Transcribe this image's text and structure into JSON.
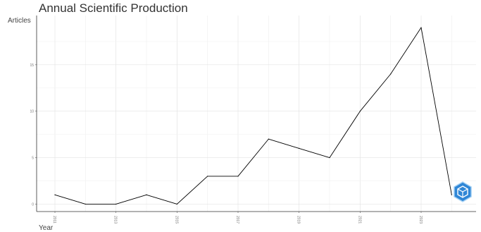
{
  "chart_data": {
    "type": "line",
    "title": "Annual Scientific Production",
    "xlabel": "Year",
    "ylabel": "Articles",
    "x": [
      2011,
      2012,
      2013,
      2014,
      2015,
      2016,
      2017,
      2018,
      2019,
      2020,
      2021,
      2022,
      2023,
      2024
    ],
    "series": [
      {
        "values": [
          1,
          0,
          0,
          1,
          0,
          3,
          3,
          7,
          6,
          5,
          10,
          14,
          19,
          1
        ]
      }
    ],
    "xticks": [
      "2011",
      "2013",
      "2015",
      "2017",
      "2019",
      "2021",
      "2023"
    ],
    "yticks": [
      "0",
      "5",
      "10",
      "15"
    ],
    "xlim": [
      2010.4,
      2024.8
    ],
    "ylim": [
      -0.8,
      20.3
    ],
    "grid": true,
    "line_color": "#000000"
  },
  "badge": {
    "icon": "hexagon-cube-icon",
    "color": "#2f86d6"
  }
}
